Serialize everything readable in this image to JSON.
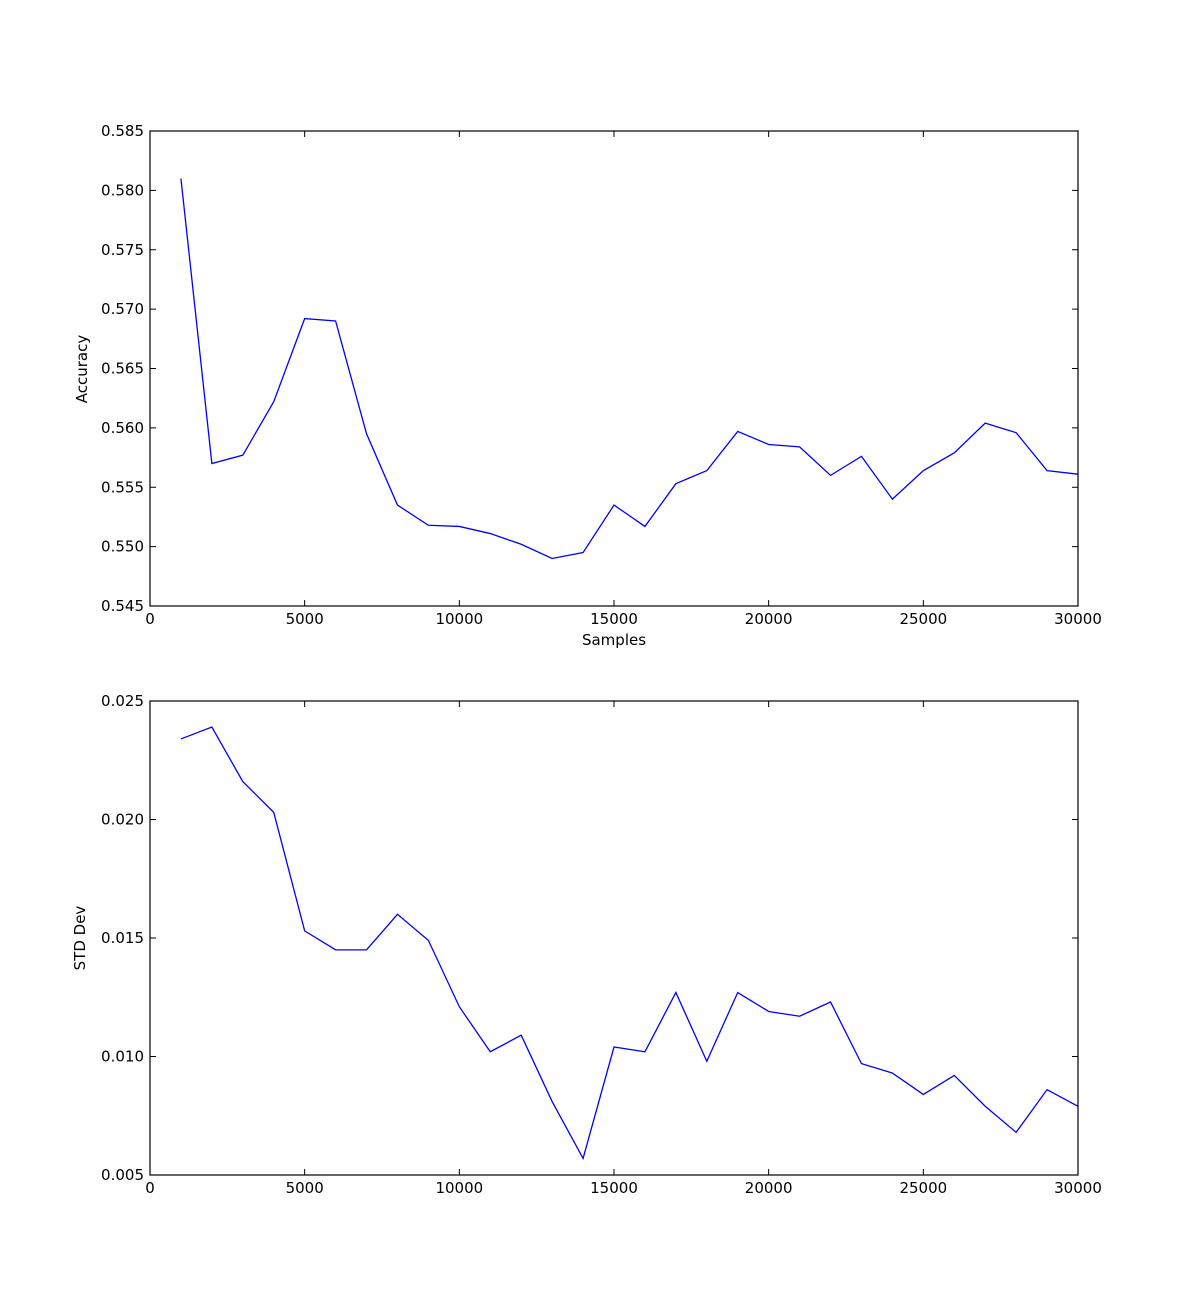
{
  "chart_data": [
    {
      "type": "line",
      "title": "",
      "xlabel": "Samples",
      "ylabel": "Accuracy",
      "xlim": [
        0,
        30000
      ],
      "ylim": [
        0.545,
        0.585
      ],
      "grid": false,
      "line_color": "#0000ff",
      "x_ticks": [
        {
          "value": 0,
          "label": "0"
        },
        {
          "value": 5000,
          "label": "5000"
        },
        {
          "value": 10000,
          "label": "10000"
        },
        {
          "value": 15000,
          "label": "15000"
        },
        {
          "value": 20000,
          "label": "20000"
        },
        {
          "value": 25000,
          "label": "25000"
        },
        {
          "value": 30000,
          "label": "30000"
        }
      ],
      "y_ticks": [
        {
          "value": 0.545,
          "label": "0.545"
        },
        {
          "value": 0.55,
          "label": "0.550"
        },
        {
          "value": 0.555,
          "label": "0.555"
        },
        {
          "value": 0.56,
          "label": "0.560"
        },
        {
          "value": 0.565,
          "label": "0.565"
        },
        {
          "value": 0.57,
          "label": "0.570"
        },
        {
          "value": 0.575,
          "label": "0.575"
        },
        {
          "value": 0.58,
          "label": "0.580"
        },
        {
          "value": 0.585,
          "label": "0.585"
        }
      ],
      "x": [
        1000,
        2000,
        3000,
        4000,
        5000,
        6000,
        7000,
        8000,
        9000,
        10000,
        11000,
        12000,
        13000,
        14000,
        15000,
        16000,
        17000,
        18000,
        19000,
        20000,
        21000,
        22000,
        23000,
        24000,
        25000,
        26000,
        27000,
        28000,
        29000,
        30000
      ],
      "series": [
        {
          "values": [
            0.581,
            0.557,
            0.5577,
            0.5622,
            0.5692,
            0.569,
            0.5595,
            0.5535,
            0.5518,
            0.5517,
            0.5511,
            0.5502,
            0.549,
            0.5495,
            0.5535,
            0.5517,
            0.5553,
            0.5564,
            0.5597,
            0.5586,
            0.5584,
            0.556,
            0.5576,
            0.554,
            0.5564,
            0.5579,
            0.5604,
            0.5596,
            0.5564,
            0.5561
          ]
        }
      ]
    },
    {
      "type": "line",
      "title": "",
      "xlabel": "",
      "ylabel": "STD Dev",
      "xlim": [
        0,
        30000
      ],
      "ylim": [
        0.005,
        0.025
      ],
      "grid": false,
      "line_color": "#0000ff",
      "x_ticks": [
        {
          "value": 0,
          "label": "0"
        },
        {
          "value": 5000,
          "label": "5000"
        },
        {
          "value": 10000,
          "label": "10000"
        },
        {
          "value": 15000,
          "label": "15000"
        },
        {
          "value": 20000,
          "label": "20000"
        },
        {
          "value": 25000,
          "label": "25000"
        },
        {
          "value": 30000,
          "label": "30000"
        }
      ],
      "y_ticks": [
        {
          "value": 0.005,
          "label": "0.005"
        },
        {
          "value": 0.01,
          "label": "0.010"
        },
        {
          "value": 0.015,
          "label": "0.015"
        },
        {
          "value": 0.02,
          "label": "0.020"
        },
        {
          "value": 0.025,
          "label": "0.025"
        }
      ],
      "x": [
        1000,
        2000,
        3000,
        4000,
        5000,
        6000,
        7000,
        8000,
        9000,
        10000,
        11000,
        12000,
        13000,
        14000,
        15000,
        16000,
        17000,
        18000,
        19000,
        20000,
        21000,
        22000,
        23000,
        24000,
        25000,
        26000,
        27000,
        28000,
        29000,
        30000
      ],
      "series": [
        {
          "values": [
            0.0234,
            0.0239,
            0.0216,
            0.0203,
            0.0153,
            0.0145,
            0.0145,
            0.016,
            0.0149,
            0.0121,
            0.0102,
            0.0109,
            0.0081,
            0.0057,
            0.0104,
            0.0102,
            0.0127,
            0.0098,
            0.0127,
            0.0119,
            0.0117,
            0.0123,
            0.0097,
            0.0093,
            0.0084,
            0.0092,
            0.0079,
            0.0068,
            0.0086,
            0.0079
          ]
        }
      ]
    }
  ]
}
